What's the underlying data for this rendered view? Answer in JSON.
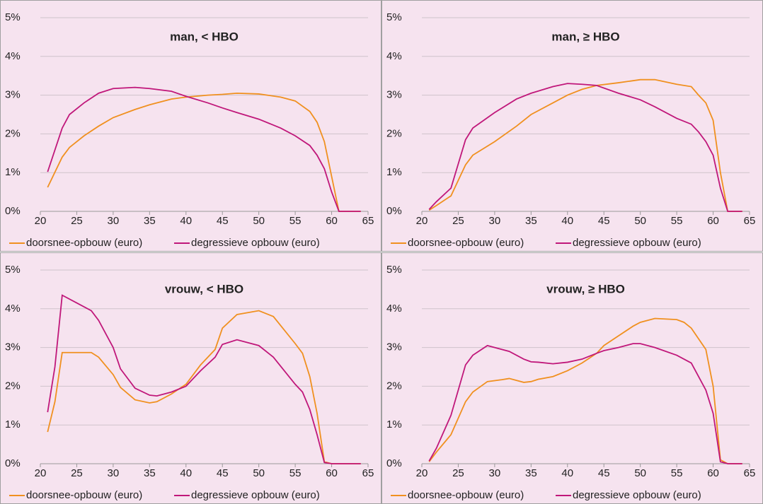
{
  "chart_data": [
    {
      "type": "line",
      "title": "man, < HBO",
      "xlim": [
        20,
        65
      ],
      "ylim": [
        0,
        5
      ],
      "xticks": [
        20,
        25,
        30,
        35,
        40,
        45,
        50,
        55,
        60,
        65
      ],
      "yticks": [
        {
          "value": 0,
          "label": "0%"
        },
        {
          "value": 1,
          "label": "1%"
        },
        {
          "value": 2,
          "label": "2%"
        },
        {
          "value": 3,
          "label": "3%"
        },
        {
          "value": 4,
          "label": "4%"
        },
        {
          "value": 5,
          "label": "5%"
        }
      ],
      "grid": true,
      "x": [
        21,
        23,
        24,
        26,
        28,
        30,
        33,
        35,
        38,
        40,
        43,
        45,
        47,
        50,
        53,
        55,
        57,
        58,
        59,
        60,
        61,
        64
      ],
      "series": [
        {
          "name": "doorsnee-opbouw (euro)",
          "color": "#f0901f",
          "values": [
            0.62,
            1.4,
            1.65,
            1.95,
            2.2,
            2.42,
            2.63,
            2.75,
            2.9,
            2.95,
            3.0,
            3.02,
            3.05,
            3.03,
            2.95,
            2.85,
            2.58,
            2.3,
            1.8,
            0.9,
            0,
            0
          ]
        },
        {
          "name": "degressieve opbouw (euro)",
          "color": "#c0177a",
          "values": [
            1.02,
            2.15,
            2.5,
            2.8,
            3.05,
            3.17,
            3.2,
            3.17,
            3.1,
            2.97,
            2.8,
            2.67,
            2.55,
            2.38,
            2.15,
            1.95,
            1.7,
            1.45,
            1.1,
            0.5,
            0,
            0
          ]
        }
      ]
    },
    {
      "type": "line",
      "title": "man, ≥ HBO",
      "xlim": [
        20,
        65
      ],
      "ylim": [
        0,
        5
      ],
      "xticks": [
        20,
        25,
        30,
        35,
        40,
        45,
        50,
        55,
        60,
        65
      ],
      "yticks": [
        {
          "value": 0,
          "label": "0%"
        },
        {
          "value": 1,
          "label": "1%"
        },
        {
          "value": 2,
          "label": "2%"
        },
        {
          "value": 3,
          "label": "3%"
        },
        {
          "value": 4,
          "label": "4%"
        },
        {
          "value": 5,
          "label": "5%"
        }
      ],
      "grid": true,
      "x": [
        21,
        22,
        24,
        26,
        27,
        30,
        33,
        35,
        38,
        40,
        42,
        44,
        47,
        50,
        52,
        55,
        57,
        58,
        59,
        60,
        61,
        62,
        64
      ],
      "series": [
        {
          "name": "doorsnee-opbouw (euro)",
          "color": "#f0901f",
          "values": [
            0.03,
            0.15,
            0.4,
            1.2,
            1.45,
            1.8,
            2.2,
            2.5,
            2.8,
            3.0,
            3.15,
            3.25,
            3.32,
            3.4,
            3.4,
            3.28,
            3.22,
            3.0,
            2.8,
            2.35,
            1.0,
            0,
            0
          ]
        },
        {
          "name": "degressieve opbouw (euro)",
          "color": "#c0177a",
          "values": [
            0.05,
            0.25,
            0.6,
            1.85,
            2.15,
            2.55,
            2.9,
            3.05,
            3.22,
            3.3,
            3.28,
            3.25,
            3.05,
            2.88,
            2.7,
            2.4,
            2.25,
            2.05,
            1.8,
            1.45,
            0.6,
            0,
            0
          ]
        }
      ]
    },
    {
      "type": "line",
      "title": "vrouw, < HBO",
      "xlim": [
        20,
        65
      ],
      "ylim": [
        0,
        5
      ],
      "xticks": [
        20,
        25,
        30,
        35,
        40,
        45,
        50,
        55,
        60,
        65
      ],
      "yticks": [
        {
          "value": 0,
          "label": "0%"
        },
        {
          "value": 1,
          "label": "1%"
        },
        {
          "value": 2,
          "label": "2%"
        },
        {
          "value": 3,
          "label": "3%"
        },
        {
          "value": 4,
          "label": "4%"
        },
        {
          "value": 5,
          "label": "5%"
        }
      ],
      "grid": true,
      "x": [
        21,
        22,
        23,
        25,
        27,
        28,
        30,
        31,
        33,
        35,
        36,
        38,
        40,
        42,
        44,
        45,
        47,
        50,
        52,
        55,
        56,
        57,
        58,
        59,
        60,
        64
      ],
      "series": [
        {
          "name": "doorsnee-opbouw (euro)",
          "color": "#f0901f",
          "values": [
            0.82,
            1.6,
            2.87,
            2.87,
            2.87,
            2.75,
            2.3,
            1.97,
            1.65,
            1.57,
            1.6,
            1.8,
            2.05,
            2.55,
            2.95,
            3.5,
            3.85,
            3.95,
            3.8,
            3.1,
            2.85,
            2.25,
            1.3,
            0.05,
            0,
            0
          ]
        },
        {
          "name": "degressieve opbouw (euro)",
          "color": "#c0177a",
          "values": [
            1.33,
            2.5,
            4.35,
            4.15,
            3.95,
            3.7,
            3.0,
            2.45,
            1.95,
            1.77,
            1.75,
            1.85,
            2.0,
            2.4,
            2.75,
            3.08,
            3.2,
            3.05,
            2.75,
            2.05,
            1.85,
            1.4,
            0.75,
            0.03,
            0,
            0
          ]
        }
      ]
    },
    {
      "type": "line",
      "title": "vrouw, ≥ HBO",
      "xlim": [
        20,
        65
      ],
      "ylim": [
        0,
        5
      ],
      "xticks": [
        20,
        25,
        30,
        35,
        40,
        45,
        50,
        55,
        60,
        65
      ],
      "yticks": [
        {
          "value": 0,
          "label": "0%"
        },
        {
          "value": 1,
          "label": "1%"
        },
        {
          "value": 2,
          "label": "2%"
        },
        {
          "value": 3,
          "label": "3%"
        },
        {
          "value": 4,
          "label": "4%"
        },
        {
          "value": 5,
          "label": "5%"
        }
      ],
      "grid": true,
      "x": [
        21,
        22,
        24,
        26,
        27,
        29,
        31,
        32,
        34,
        35,
        36,
        38,
        40,
        42,
        44,
        45,
        47,
        49,
        50,
        52,
        55,
        56,
        57,
        59,
        60,
        61,
        62,
        64
      ],
      "series": [
        {
          "name": "doorsnee-opbouw (euro)",
          "color": "#f0901f",
          "values": [
            0.05,
            0.3,
            0.75,
            1.6,
            1.85,
            2.12,
            2.17,
            2.2,
            2.1,
            2.12,
            2.18,
            2.25,
            2.4,
            2.6,
            2.85,
            3.05,
            3.3,
            3.55,
            3.65,
            3.75,
            3.72,
            3.65,
            3.5,
            2.95,
            2.0,
            0.1,
            0,
            0
          ]
        },
        {
          "name": "degressieve opbouw (euro)",
          "color": "#c0177a",
          "values": [
            0.07,
            0.4,
            1.25,
            2.55,
            2.8,
            3.05,
            2.95,
            2.9,
            2.7,
            2.63,
            2.62,
            2.58,
            2.62,
            2.7,
            2.85,
            2.92,
            3.0,
            3.1,
            3.1,
            3.0,
            2.8,
            2.7,
            2.6,
            1.9,
            1.3,
            0.05,
            0,
            0
          ]
        }
      ]
    }
  ]
}
